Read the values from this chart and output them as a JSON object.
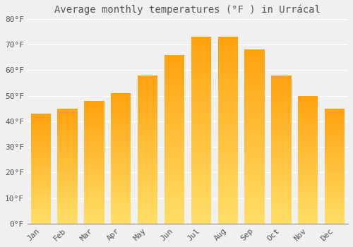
{
  "title": "Average monthly temperatures (°F ) in Urrácal",
  "months": [
    "Jan",
    "Feb",
    "Mar",
    "Apr",
    "May",
    "Jun",
    "Jul",
    "Aug",
    "Sep",
    "Oct",
    "Nov",
    "Dec"
  ],
  "values": [
    43,
    45,
    48,
    51,
    58,
    66,
    73,
    73,
    68,
    58,
    50,
    45
  ],
  "bar_color": "#FFA800",
  "bar_color_light": "#FFD060",
  "background_color": "#f0f0f0",
  "plot_bg_color": "#f0f0f0",
  "grid_color": "#ffffff",
  "text_color": "#555555",
  "ylim": [
    0,
    80
  ],
  "yticks": [
    0,
    10,
    20,
    30,
    40,
    50,
    60,
    70,
    80
  ],
  "ytick_labels": [
    "0°F",
    "10°F",
    "20°F",
    "30°F",
    "40°F",
    "50°F",
    "60°F",
    "70°F",
    "80°F"
  ],
  "title_fontsize": 10,
  "tick_fontsize": 8,
  "bar_width": 0.75
}
